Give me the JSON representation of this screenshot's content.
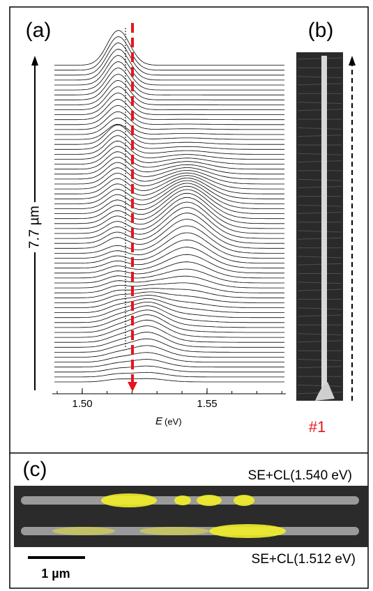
{
  "panel_a": {
    "label": "(a)",
    "xlabel_symbol": "E",
    "xlabel_unit": "(eV)",
    "xticks": [
      "1.50",
      "1.55"
    ],
    "scale": "7.7 µm"
  },
  "panel_b": {
    "label": "(b)",
    "marker": "#1"
  },
  "panel_c": {
    "label": "(c)",
    "top_caption": "SE+CL(1.540 eV)",
    "bottom_caption": "SE+CL(1.512 eV)",
    "scale_bar": "1 µm"
  }
}
